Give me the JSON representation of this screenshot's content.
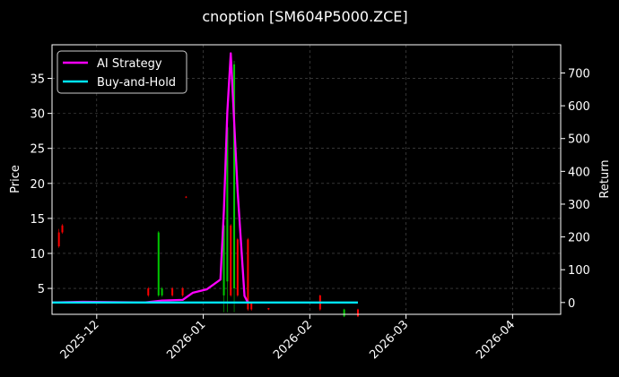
{
  "chart_data": {
    "type": "line",
    "title": "cnoption [SM604P5000.ZCE]",
    "ylabel": "Price",
    "y2label": "Return",
    "xlabel": "",
    "x_ticks": [
      "2025-12",
      "2026-01",
      "2026-02",
      "2026-03",
      "2026-04"
    ],
    "x_range": [
      "2025-11-18",
      "2026-04-15"
    ],
    "y_ticks": [
      5,
      10,
      15,
      20,
      25,
      30,
      35
    ],
    "ylim": [
      1.3,
      39.8
    ],
    "y2_ticks": [
      0,
      100,
      200,
      300,
      400,
      500,
      600,
      700
    ],
    "y2lim": [
      -36,
      786
    ],
    "grid": true,
    "legend_position": "top-left",
    "colors": {
      "background": "#000000",
      "ai_strategy": "#ff00ff",
      "buy_and_hold": "#00e5ff",
      "up_candle": "#00c800",
      "down_candle": "#ff0000",
      "grid": "#555555"
    },
    "series": [
      {
        "name": "AI Strategy",
        "axis": "right",
        "points": [
          [
            "2025-11-18",
            0
          ],
          [
            "2025-11-27",
            2
          ],
          [
            "2025-12-06",
            1
          ],
          [
            "2025-12-15",
            0
          ],
          [
            "2025-12-20",
            6
          ],
          [
            "2025-12-26",
            8
          ],
          [
            "2025-12-29",
            30
          ],
          [
            "2026-01-02",
            40
          ],
          [
            "2026-01-06",
            70
          ],
          [
            "2026-01-07",
            280
          ],
          [
            "2026-01-08",
            580
          ],
          [
            "2026-01-09",
            760
          ],
          [
            "2026-01-10",
            550
          ],
          [
            "2026-01-11",
            340
          ],
          [
            "2026-01-12",
            180
          ],
          [
            "2026-01-13",
            20
          ],
          [
            "2026-01-14",
            0
          ]
        ]
      },
      {
        "name": "Buy-and-Hold",
        "axis": "right",
        "points": [
          [
            "2025-11-18",
            0
          ],
          [
            "2026-02-15",
            0
          ]
        ]
      }
    ],
    "candles": [
      {
        "date": "2025-11-20",
        "open": 13,
        "close": 11,
        "high": 13.5,
        "low": 10.8
      },
      {
        "date": "2025-11-21",
        "open": 14,
        "close": 13,
        "high": 14.2,
        "low": 12.8
      },
      {
        "date": "2025-12-16",
        "open": 5,
        "close": 4,
        "high": 5.2,
        "low": 3.8
      },
      {
        "date": "2025-12-19",
        "open": 4,
        "close": 13,
        "high": 13.2,
        "low": 3.8
      },
      {
        "date": "2025-12-20",
        "open": 4,
        "close": 5,
        "high": 5.2,
        "low": 3.8
      },
      {
        "date": "2025-12-23",
        "open": 5,
        "close": 4,
        "high": 5.2,
        "low": 3.8
      },
      {
        "date": "2025-12-26",
        "open": 5,
        "close": 4,
        "high": 5.2,
        "low": 3.8
      },
      {
        "date": "2025-12-27",
        "open": 18.1,
        "close": 18,
        "high": 18.2,
        "low": 17.9
      },
      {
        "date": "2026-01-07",
        "open": 4,
        "close": 14,
        "high": 14.2,
        "low": 1.6
      },
      {
        "date": "2026-01-08",
        "open": 6,
        "close": 28,
        "high": 28.2,
        "low": 1.6
      },
      {
        "date": "2026-01-09",
        "open": 14,
        "close": 4,
        "high": 14.2,
        "low": 3.8
      },
      {
        "date": "2026-01-10",
        "open": 5,
        "close": 37,
        "high": 37.5,
        "low": 1.6
      },
      {
        "date": "2026-01-11",
        "open": 12,
        "close": 4,
        "high": 12.2,
        "low": 3.8
      },
      {
        "date": "2026-01-14",
        "open": 12,
        "close": 2,
        "high": 12.2,
        "low": 1.8
      },
      {
        "date": "2026-01-15",
        "open": 3,
        "close": 2,
        "high": 3.1,
        "low": 1.8
      },
      {
        "date": "2026-01-20",
        "open": 2.2,
        "close": 2,
        "high": 2.2,
        "low": 1.9
      },
      {
        "date": "2026-02-04",
        "open": 4,
        "close": 2,
        "high": 4.1,
        "low": 1.8
      },
      {
        "date": "2026-02-11",
        "open": 1,
        "close": 2,
        "high": 2.1,
        "low": 0.9
      },
      {
        "date": "2026-02-15",
        "open": 2,
        "close": 1,
        "high": 2.1,
        "low": 0.9
      }
    ]
  }
}
